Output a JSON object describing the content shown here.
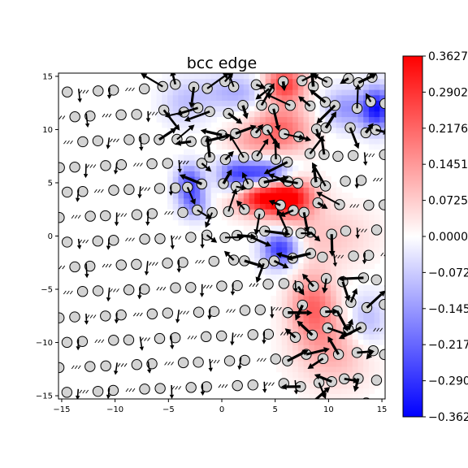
{
  "chart_data": {
    "type": "heatmap",
    "title": "bcc edge",
    "xlabel": "",
    "ylabel": "",
    "xlim": [
      -15.3,
      15.3
    ],
    "ylim": [
      -15.3,
      15.3
    ],
    "x_ticks": [
      -15,
      -10,
      -5,
      0,
      5,
      10,
      15
    ],
    "y_ticks": [
      -15,
      -10,
      -5,
      0,
      5,
      10,
      15
    ],
    "x_tick_labels": [
      "−15",
      "−10",
      "−5",
      "0",
      "5",
      "10",
      "15"
    ],
    "y_tick_labels": [
      "−15",
      "−10",
      "−5",
      "0",
      "5",
      "10",
      "15"
    ],
    "colormap": "bwr",
    "colors": {
      "low": "#0000ff",
      "mid": "#ffffff",
      "high": "#ff0000",
      "atom_fill": "#d3d3d3",
      "arrow": "#000000"
    },
    "colorbar": {
      "min": -0.3627,
      "max": 0.3627,
      "ticks": [
        0.3627,
        0.2902,
        0.2176,
        0.1451,
        0.0725,
        0.0,
        -0.0725,
        -0.1451,
        -0.2176,
        -0.2902,
        -0.3627
      ],
      "tick_labels": [
        "0.3627",
        "0.2902",
        "0.2176",
        "0.1451",
        "0.0725",
        "0.0000",
        "−0.0725",
        "−0.1451",
        "−0.2176",
        "−0.2902",
        "−0.3627"
      ]
    },
    "field_features": [
      {
        "x": 3.5,
        "y": 3.8,
        "value": 0.36,
        "sx": 2.2,
        "sy": 1.2
      },
      {
        "x": 6.5,
        "y": 3.6,
        "value": 0.28,
        "sx": 1.6,
        "sy": 1.4
      },
      {
        "x": 5.5,
        "y": 10.0,
        "value": 0.22,
        "sx": 2.0,
        "sy": 1.6
      },
      {
        "x": 5.8,
        "y": 14.2,
        "value": 0.3,
        "sx": 1.4,
        "sy": 1.2
      },
      {
        "x": 8.5,
        "y": -6.5,
        "value": 0.2,
        "sx": 1.5,
        "sy": 2.2
      },
      {
        "x": 10.5,
        "y": -10.5,
        "value": 0.12,
        "sx": 2.5,
        "sy": 2.5
      },
      {
        "x": 10.0,
        "y": 0.0,
        "value": 0.08,
        "sx": 3.0,
        "sy": 2.0
      },
      {
        "x": 4.0,
        "y": 5.8,
        "value": -0.33,
        "sx": 1.8,
        "sy": 1.0
      },
      {
        "x": 5.5,
        "y": -1.2,
        "value": -0.3,
        "sx": 1.2,
        "sy": 1.2
      },
      {
        "x": 1.2,
        "y": 5.4,
        "value": -0.22,
        "sx": 1.2,
        "sy": 1.6
      },
      {
        "x": -3.0,
        "y": 5.0,
        "value": -0.25,
        "sx": 0.9,
        "sy": 1.2
      },
      {
        "x": 14.5,
        "y": 12.0,
        "value": -0.33,
        "sx": 1.0,
        "sy": 1.4
      },
      {
        "x": 11.5,
        "y": 12.0,
        "value": -0.15,
        "sx": 1.4,
        "sy": 1.3
      },
      {
        "x": 13.5,
        "y": -8.0,
        "value": -0.12,
        "sx": 1.4,
        "sy": 1.8
      },
      {
        "x": 1.5,
        "y": 13.5,
        "value": -0.12,
        "sx": 2.5,
        "sy": 1.2
      },
      {
        "x": -3.5,
        "y": 12.5,
        "value": -0.08,
        "sx": 1.5,
        "sy": 1.5
      },
      {
        "x": -2.5,
        "y": 3.0,
        "value": -0.15,
        "sx": 1.0,
        "sy": 1.0
      },
      {
        "x": 2.0,
        "y": 8.5,
        "value": 0.1,
        "sx": 1.5,
        "sy": 1.2
      }
    ],
    "atom_lattice": {
      "row_spacing": 2.35,
      "col_spacing": 1.45,
      "row_offset": 0.72,
      "tilt": 0.16
    },
    "defect_core": {
      "x": 4.0,
      "y": 3.5
    }
  }
}
